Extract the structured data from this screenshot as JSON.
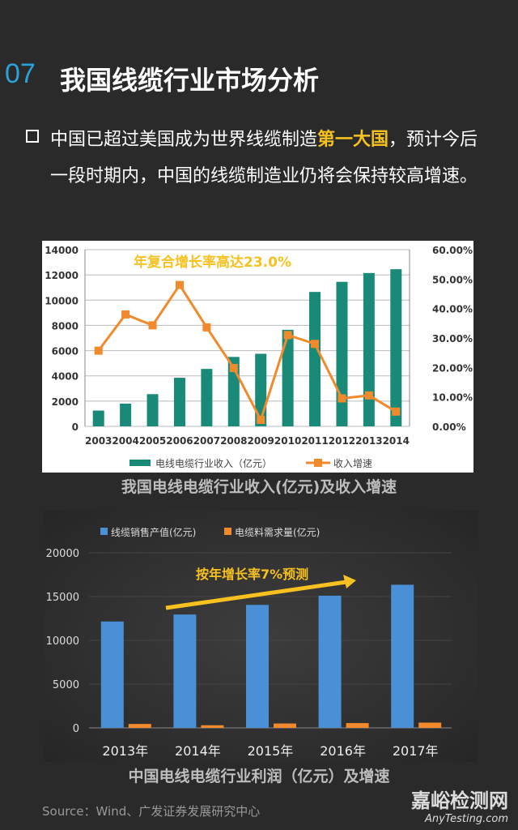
{
  "header": {
    "number": "07",
    "title": "我国线缆行业市场分析"
  },
  "bullet": {
    "text_before": "中国已超过美国成为世界线缆制造",
    "highlight": "第一大国",
    "text_after": "，预计今后一段时期内，中国的线缆制造业仍将会保持较高增速。"
  },
  "captions": {
    "chart1": "我国电线电缆行业收入(亿元)及收入增速",
    "chart2": "中国电线电缆行业利润（亿元）及增速"
  },
  "source": "Source：Wind、广发证券发展研究中心",
  "watermark": {
    "cn": "嘉峪检测网",
    "en": "AnyTesting.com"
  },
  "colors": {
    "teal": "#1a8a78",
    "orange": "#f08a2c",
    "blue": "#4a90d6",
    "annot": "#f7c11f"
  },
  "chart_data": [
    {
      "type": "bar",
      "annotation": "年复合增长率高达23.0%",
      "categories": [
        "2003",
        "2004",
        "2005",
        "2006",
        "2007",
        "2008",
        "2009",
        "2010",
        "2011",
        "2012",
        "2013",
        "2014"
      ],
      "series": [
        {
          "name": "电线电缆行业收入（亿元）",
          "type": "bar",
          "axis": "left",
          "values": [
            1250,
            1800,
            2550,
            3850,
            4550,
            5500,
            5750,
            7650,
            10650,
            11450,
            12150,
            12450
          ]
        },
        {
          "name": "收入增速",
          "type": "line",
          "axis": "right",
          "values": [
            25.7,
            38.0,
            34.3,
            48.0,
            33.6,
            19.8,
            2.2,
            31.0,
            28.0,
            9.5,
            10.5,
            5.0
          ]
        }
      ],
      "ylim": [
        0,
        14000
      ],
      "yticks": [
        "0",
        "2000",
        "4000",
        "6000",
        "8000",
        "10000",
        "12000",
        "14000"
      ],
      "y2lim": [
        0,
        60
      ],
      "y2ticks": [
        "0.00%",
        "10.00%",
        "20.00%",
        "30.00%",
        "40.00%",
        "50.00%",
        "60.00%"
      ],
      "grid": true,
      "legend": "bottom"
    },
    {
      "type": "bar",
      "annotation": "按年增长率7%预测",
      "categories": [
        "2013年",
        "2014年",
        "2015年",
        "2016年",
        "2017年"
      ],
      "series": [
        {
          "name": "线缆销售产值(亿元)",
          "values": [
            12150,
            12950,
            14050,
            15100,
            16350
          ]
        },
        {
          "name": "电缆料需求量(亿元)",
          "values": [
            450,
            300,
            500,
            550,
            600
          ]
        }
      ],
      "ylim": [
        0,
        20000
      ],
      "yticks": [
        "0",
        "5000",
        "10000",
        "15000",
        "20000"
      ],
      "grid": true,
      "legend": "top"
    }
  ]
}
